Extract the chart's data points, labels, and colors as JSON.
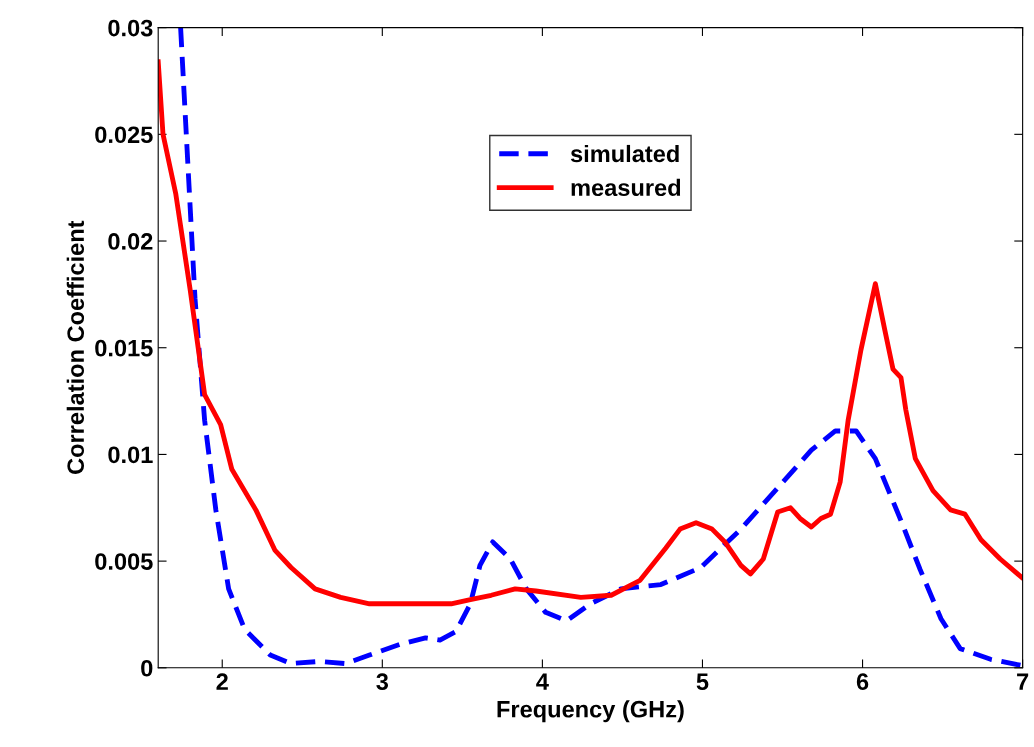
{
  "chart_data": {
    "type": "line",
    "xlabel": "Frequency (GHz)",
    "ylabel": "Correlation Coefficient",
    "xlim": [
      1.6,
      7
    ],
    "ylim": [
      0,
      0.03
    ],
    "xticks": [
      2,
      3,
      4,
      5,
      6,
      7
    ],
    "yticks": [
      0,
      0.005,
      0.01,
      0.015,
      0.02,
      0.025,
      0.03
    ],
    "grid": false,
    "legend": "top",
    "marker": "none",
    "series": [
      {
        "name": "simulated",
        "color": "#0000ff",
        "line_style": "dashed",
        "x": [
          1.74,
          1.83,
          1.89,
          1.96,
          2.04,
          2.14,
          2.3,
          2.43,
          2.61,
          2.77,
          2.92,
          3.11,
          3.27,
          3.36,
          3.46,
          3.55,
          3.61,
          3.69,
          3.8,
          3.9,
          4.02,
          4.15,
          4.3,
          4.49,
          4.74,
          4.99,
          5.24,
          5.49,
          5.68,
          5.83,
          5.96,
          6.08,
          6.24,
          6.36,
          6.49,
          6.61,
          6.8,
          7.0
        ],
        "values": [
          0.03,
          0.0173,
          0.0116,
          0.0074,
          0.0037,
          0.0018,
          0.0006,
          0.0002,
          0.0003,
          0.0002,
          0.0006,
          0.0011,
          0.0014,
          0.0013,
          0.0017,
          0.003,
          0.0048,
          0.0059,
          0.0051,
          0.0037,
          0.0026,
          0.0022,
          0.003,
          0.0037,
          0.0039,
          0.0047,
          0.0065,
          0.0086,
          0.0102,
          0.0111,
          0.0111,
          0.0098,
          0.0069,
          0.0046,
          0.0023,
          0.0009,
          0.0004,
          0.0001
        ]
      },
      {
        "name": "measured",
        "color": "#ff0000",
        "line_style": "solid",
        "x": [
          1.6,
          1.63,
          1.71,
          1.8,
          1.89,
          1.99,
          2.06,
          2.21,
          2.33,
          2.43,
          2.58,
          2.74,
          2.92,
          3.43,
          3.55,
          3.68,
          3.83,
          3.96,
          4.24,
          4.43,
          4.61,
          4.77,
          4.86,
          4.96,
          5.06,
          5.14,
          5.24,
          5.3,
          5.38,
          5.47,
          5.55,
          5.61,
          5.68,
          5.74,
          5.8,
          5.86,
          5.91,
          5.99,
          6.08,
          6.14,
          6.19,
          6.24,
          6.27,
          6.33,
          6.44,
          6.55,
          6.64,
          6.74,
          6.86,
          7.0
        ],
        "values": [
          0.0284,
          0.025,
          0.0222,
          0.0177,
          0.0128,
          0.0114,
          0.0093,
          0.0074,
          0.0055,
          0.0047,
          0.0037,
          0.0033,
          0.003,
          0.003,
          0.0032,
          0.0034,
          0.0037,
          0.0036,
          0.0033,
          0.0034,
          0.0041,
          0.0056,
          0.0065,
          0.0068,
          0.0065,
          0.0059,
          0.0048,
          0.0044,
          0.0051,
          0.0073,
          0.0075,
          0.007,
          0.0066,
          0.007,
          0.0072,
          0.0087,
          0.0116,
          0.0149,
          0.018,
          0.0158,
          0.014,
          0.0136,
          0.0121,
          0.0098,
          0.0083,
          0.0074,
          0.0072,
          0.006,
          0.0051,
          0.0042
        ]
      }
    ]
  }
}
